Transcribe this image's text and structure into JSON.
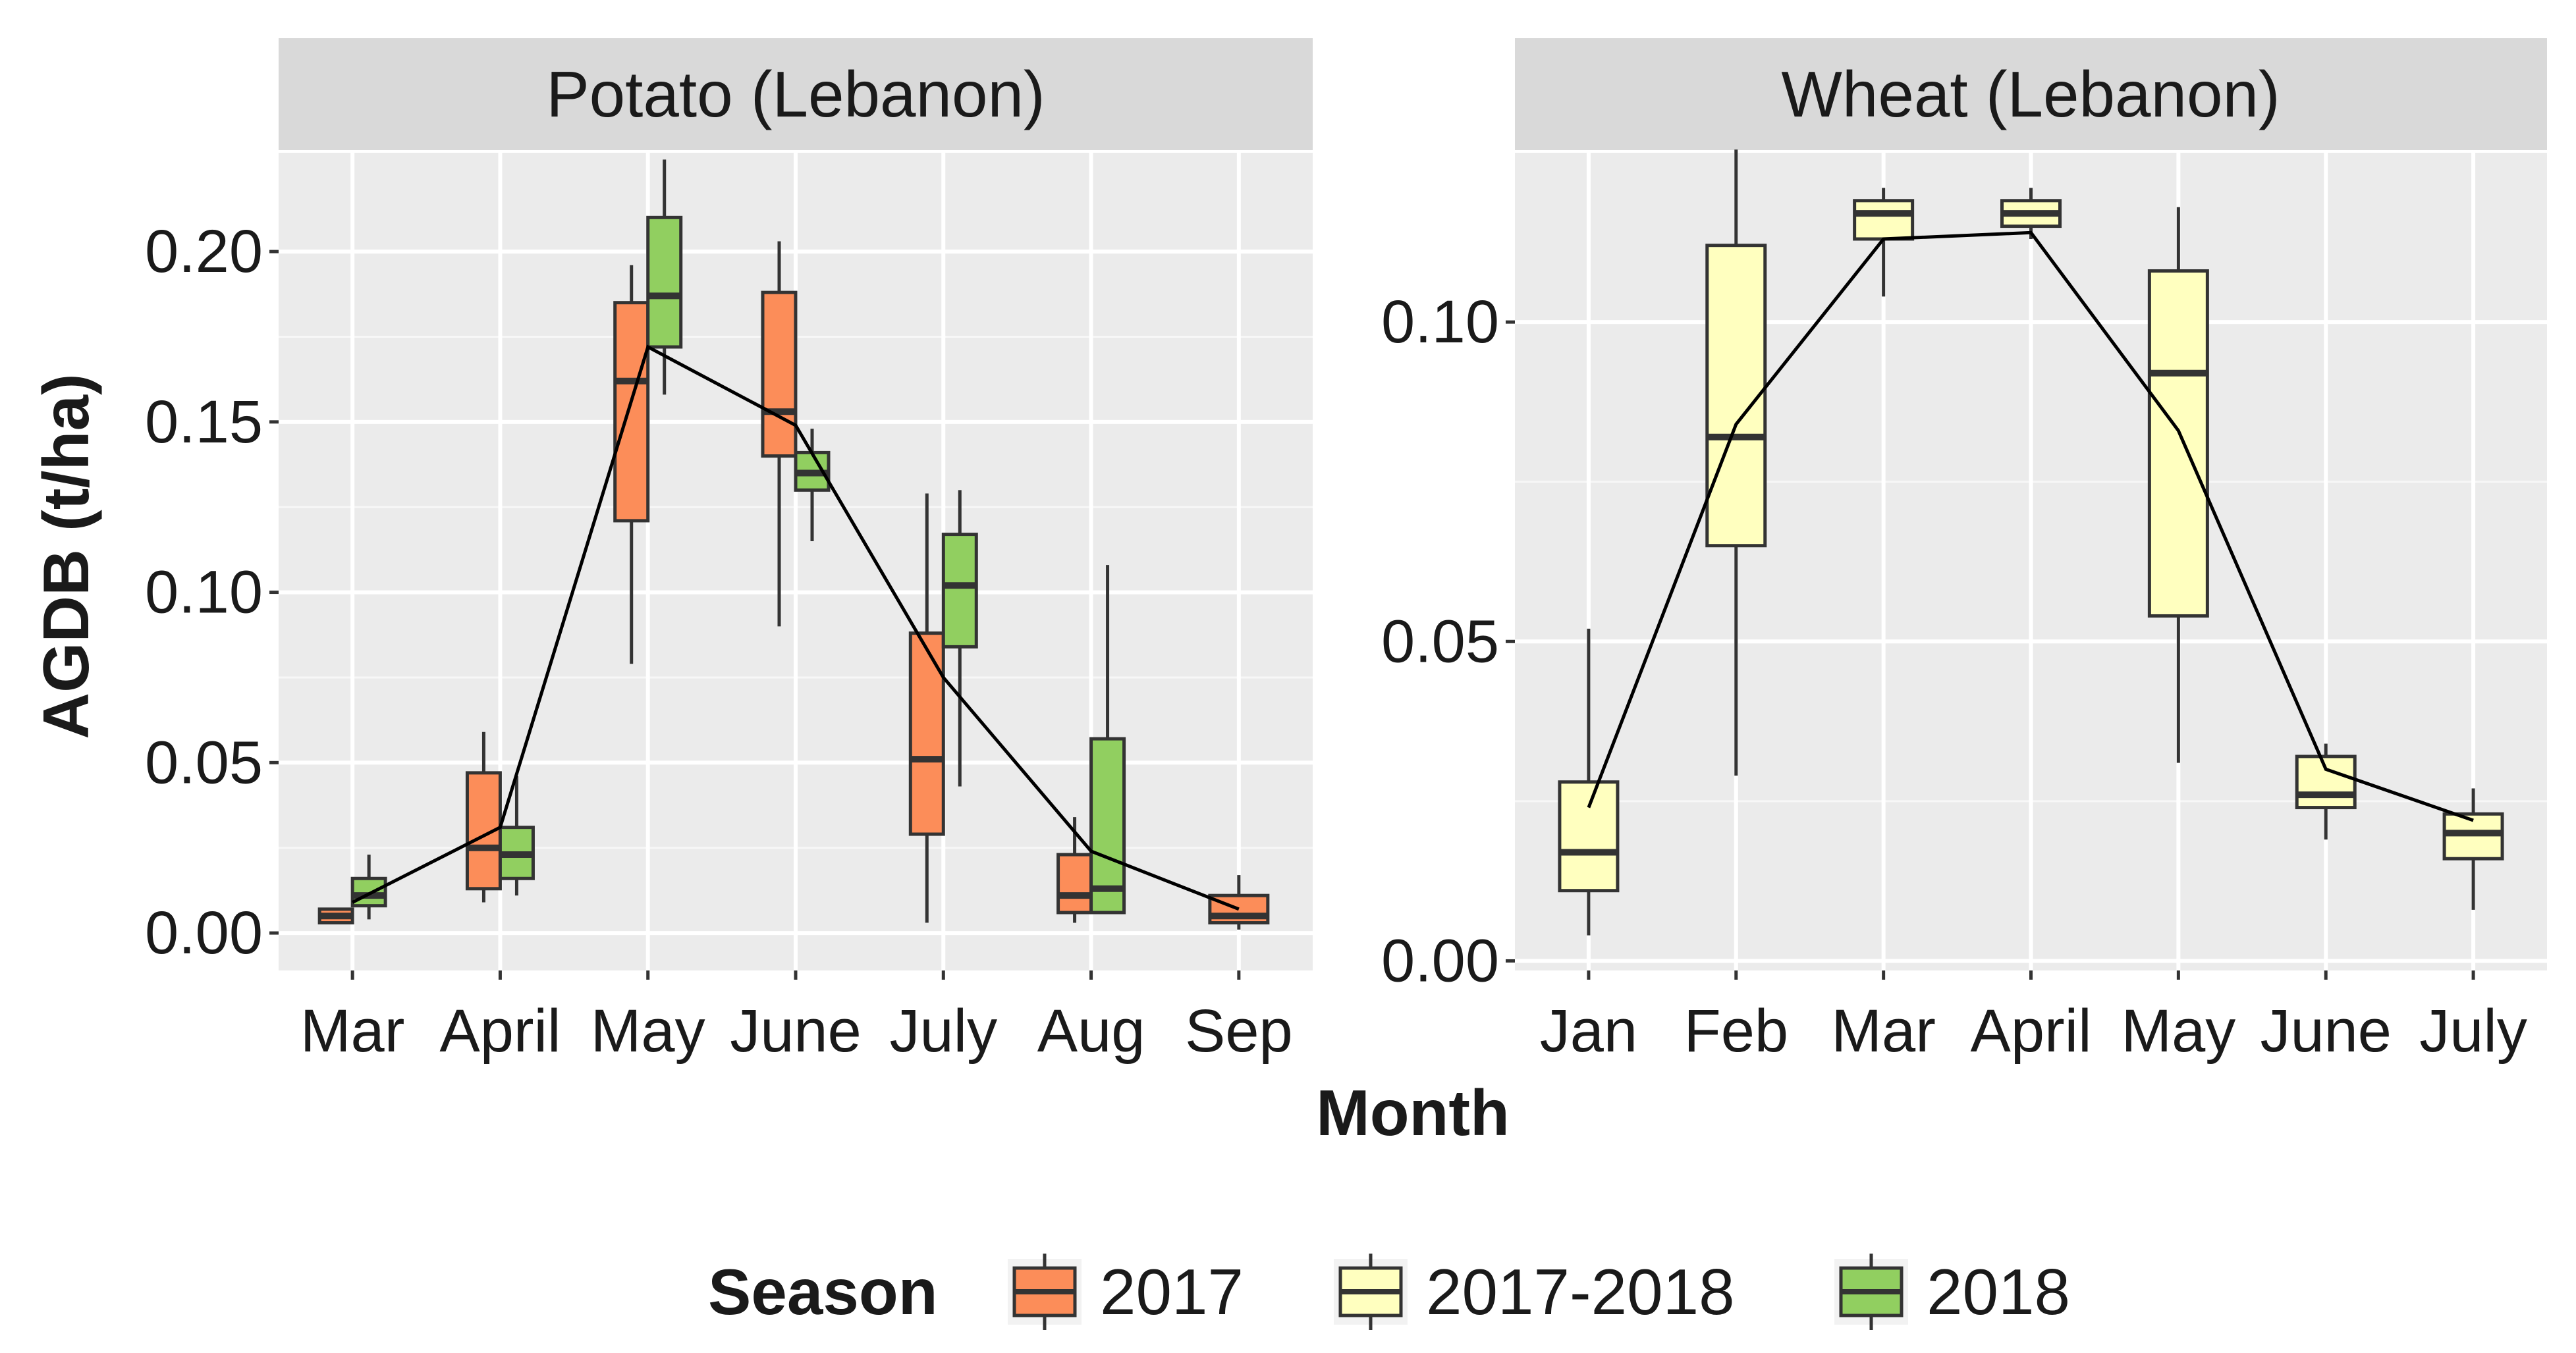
{
  "chart_data": {
    "type": "box",
    "ylabel": "AGDB (t/ha)",
    "xlabel": "Month",
    "legend": {
      "title": "Season",
      "placement": "bottom",
      "entries": [
        {
          "label": "2017",
          "color": "#FC8D59"
        },
        {
          "label": "2017-2018",
          "color": "#FFFFBF"
        },
        {
          "label": "2018",
          "color": "#91CF60"
        }
      ]
    },
    "panels": [
      {
        "title": "Potato (Lebanon)",
        "categories": [
          "Mar",
          "April",
          "May",
          "June",
          "July",
          "Aug",
          "Sep"
        ],
        "ylim": [
          -0.011,
          0.229
        ],
        "yticks": [
          0.0,
          0.05,
          0.1,
          0.15,
          0.2
        ],
        "yticklabels": [
          "0.00",
          "0.05",
          "0.10",
          "0.15",
          "0.20"
        ],
        "boxes": [
          {
            "cat": 0,
            "season": "2017",
            "min": 0.003,
            "q1": 0.003,
            "median": 0.005,
            "q3": 0.007,
            "max": 0.007
          },
          {
            "cat": 0,
            "season": "2018",
            "min": 0.004,
            "q1": 0.008,
            "median": 0.011,
            "q3": 0.016,
            "max": 0.023
          },
          {
            "cat": 1,
            "season": "2017",
            "min": 0.009,
            "q1": 0.013,
            "median": 0.025,
            "q3": 0.047,
            "max": 0.059
          },
          {
            "cat": 1,
            "season": "2018",
            "min": 0.011,
            "q1": 0.016,
            "median": 0.023,
            "q3": 0.031,
            "max": 0.046
          },
          {
            "cat": 2,
            "season": "2017",
            "min": 0.079,
            "q1": 0.121,
            "median": 0.162,
            "q3": 0.185,
            "max": 0.196
          },
          {
            "cat": 2,
            "season": "2018",
            "min": 0.158,
            "q1": 0.172,
            "median": 0.187,
            "q3": 0.21,
            "max": 0.227
          },
          {
            "cat": 3,
            "season": "2017",
            "min": 0.09,
            "q1": 0.14,
            "median": 0.153,
            "q3": 0.188,
            "max": 0.203
          },
          {
            "cat": 3,
            "season": "2018",
            "min": 0.115,
            "q1": 0.13,
            "median": 0.135,
            "q3": 0.141,
            "max": 0.148
          },
          {
            "cat": 4,
            "season": "2017",
            "min": 0.003,
            "q1": 0.029,
            "median": 0.051,
            "q3": 0.088,
            "max": 0.129
          },
          {
            "cat": 4,
            "season": "2018",
            "min": 0.043,
            "q1": 0.084,
            "median": 0.102,
            "q3": 0.117,
            "max": 0.13
          },
          {
            "cat": 5,
            "season": "2017",
            "min": 0.003,
            "q1": 0.006,
            "median": 0.011,
            "q3": 0.023,
            "max": 0.034
          },
          {
            "cat": 5,
            "season": "2018",
            "min": 0.006,
            "q1": 0.006,
            "median": 0.013,
            "q3": 0.057,
            "max": 0.108
          },
          {
            "cat": 6,
            "season": "2017",
            "min": 0.001,
            "q1": 0.003,
            "median": 0.005,
            "q3": 0.011,
            "max": 0.017
          }
        ],
        "mean_line": [
          0.009,
          0.031,
          0.172,
          0.149,
          0.075,
          0.024,
          0.007
        ]
      },
      {
        "title": "Wheat (Lebanon)",
        "categories": [
          "Jan",
          "Feb",
          "Mar",
          "April",
          "May",
          "June",
          "July"
        ],
        "ylim": [
          -0.0015,
          0.1265
        ],
        "yticks": [
          0.0,
          0.05,
          0.1
        ],
        "yticklabels": [
          "0.00",
          "0.05",
          "0.10"
        ],
        "boxes": [
          {
            "cat": 0,
            "season": "2017-2018",
            "min": 0.004,
            "q1": 0.011,
            "median": 0.017,
            "q3": 0.028,
            "max": 0.052
          },
          {
            "cat": 1,
            "season": "2017-2018",
            "min": 0.029,
            "q1": 0.065,
            "median": 0.082,
            "q3": 0.112,
            "max": 0.127
          },
          {
            "cat": 2,
            "season": "2017-2018",
            "min": 0.104,
            "q1": 0.113,
            "median": 0.117,
            "q3": 0.119,
            "max": 0.121
          },
          {
            "cat": 3,
            "season": "2017-2018",
            "min": 0.113,
            "q1": 0.115,
            "median": 0.117,
            "q3": 0.119,
            "max": 0.121
          },
          {
            "cat": 4,
            "season": "2017-2018",
            "min": 0.031,
            "q1": 0.054,
            "median": 0.092,
            "q3": 0.108,
            "max": 0.118
          },
          {
            "cat": 5,
            "season": "2017-2018",
            "min": 0.019,
            "q1": 0.024,
            "median": 0.026,
            "q3": 0.032,
            "max": 0.034
          },
          {
            "cat": 6,
            "season": "2017-2018",
            "min": 0.008,
            "q1": 0.016,
            "median": 0.02,
            "q3": 0.023,
            "max": 0.027
          }
        ],
        "mean_line": [
          0.024,
          0.084,
          0.113,
          0.114,
          0.083,
          0.03,
          0.022
        ]
      }
    ]
  }
}
